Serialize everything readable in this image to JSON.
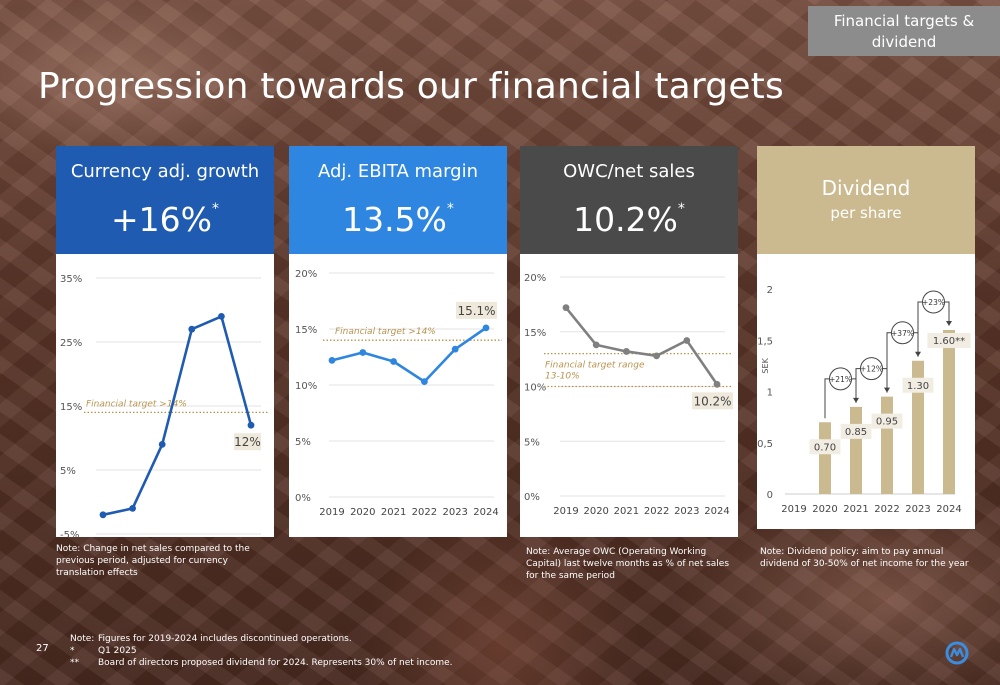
{
  "section_tag": "Financial targets & dividend",
  "title": "Progression towards our financial targets",
  "cards": [
    {
      "title": "Currency adj. growth",
      "value": "+16%",
      "mark": "*"
    },
    {
      "title": "Adj. EBITA margin",
      "value": "13.5%",
      "mark": "*"
    },
    {
      "title": "OWC/net sales",
      "value": "10.2%",
      "mark": "*"
    },
    {
      "title": "Dividend",
      "subtitle": "per share"
    }
  ],
  "notes": {
    "growth": "Note: Change in net sales compared to the previous period, adjusted for currency translation effects",
    "owc": "Note: Average OWC (Operating Working Capital) last twelve months as % of net sales for the same period",
    "dividend": "Note: Dividend policy: aim to pay annual dividend of 30-50% of net income for the year"
  },
  "page_number": "27",
  "footnotes": [
    {
      "key": "Note:",
      "text": "Figures for 2019-2024 includes discontinued operations."
    },
    {
      "key": "*",
      "text": "Q1 2025"
    },
    {
      "key": "**",
      "text": "Board of directors proposed dividend for 2024. Represents 30% of net income."
    }
  ],
  "colors": {
    "growth": "#1f5bb0",
    "ebita": "#2e86e0",
    "owc": "#808080",
    "dividend": "#cbb98f",
    "target": "#b8944f"
  },
  "chart_data": [
    {
      "type": "line",
      "x": [
        "2019",
        "2020",
        "2021",
        "2022",
        "2023",
        "2024"
      ],
      "y": [
        -2,
        -1,
        9,
        27,
        29,
        12
      ],
      "yticks": [
        "-5%",
        "5%",
        "15%",
        "25%",
        "35%"
      ],
      "ylim": [
        -5,
        35
      ],
      "target_label": "Financial target >14%",
      "target_value": 14,
      "end_label": "12%"
    },
    {
      "type": "line",
      "x": [
        "2019",
        "2020",
        "2021",
        "2022",
        "2023",
        "2024"
      ],
      "y": [
        12.2,
        12.9,
        12.1,
        10.3,
        13.2,
        15.1
      ],
      "yticks": [
        "0%",
        "5%",
        "10%",
        "15%",
        "20%"
      ],
      "ylim": [
        0,
        20
      ],
      "target_label": "Financial target >14%",
      "target_value": 14,
      "end_label": "15.1%"
    },
    {
      "type": "line",
      "x": [
        "2019",
        "2020",
        "2021",
        "2022",
        "2023",
        "2024"
      ],
      "y": [
        17.2,
        13.8,
        13.2,
        12.8,
        14.2,
        10.2
      ],
      "yticks": [
        "0%",
        "5%",
        "10%",
        "15%",
        "20%"
      ],
      "ylim": [
        0,
        20
      ],
      "target_label": "Financial target range",
      "target_label_2": "13-10%",
      "target_range": [
        10,
        13
      ],
      "end_label": "10.2%"
    },
    {
      "type": "bar",
      "x": [
        "2019",
        "2020",
        "2021",
        "2022",
        "2023",
        "2024"
      ],
      "y": [
        null,
        0.7,
        0.85,
        0.95,
        1.3,
        1.6
      ],
      "bar_labels": [
        "",
        "0.70",
        "0.85",
        "0.95",
        "1.30",
        "1.60**"
      ],
      "growth_labels": [
        "+21%",
        "+12%",
        "+37%",
        "+23%"
      ],
      "yticks": [
        "0",
        "0,5",
        "1",
        "1,5",
        "2"
      ],
      "ylim": [
        0,
        2
      ],
      "ylabel": "SEK"
    }
  ]
}
